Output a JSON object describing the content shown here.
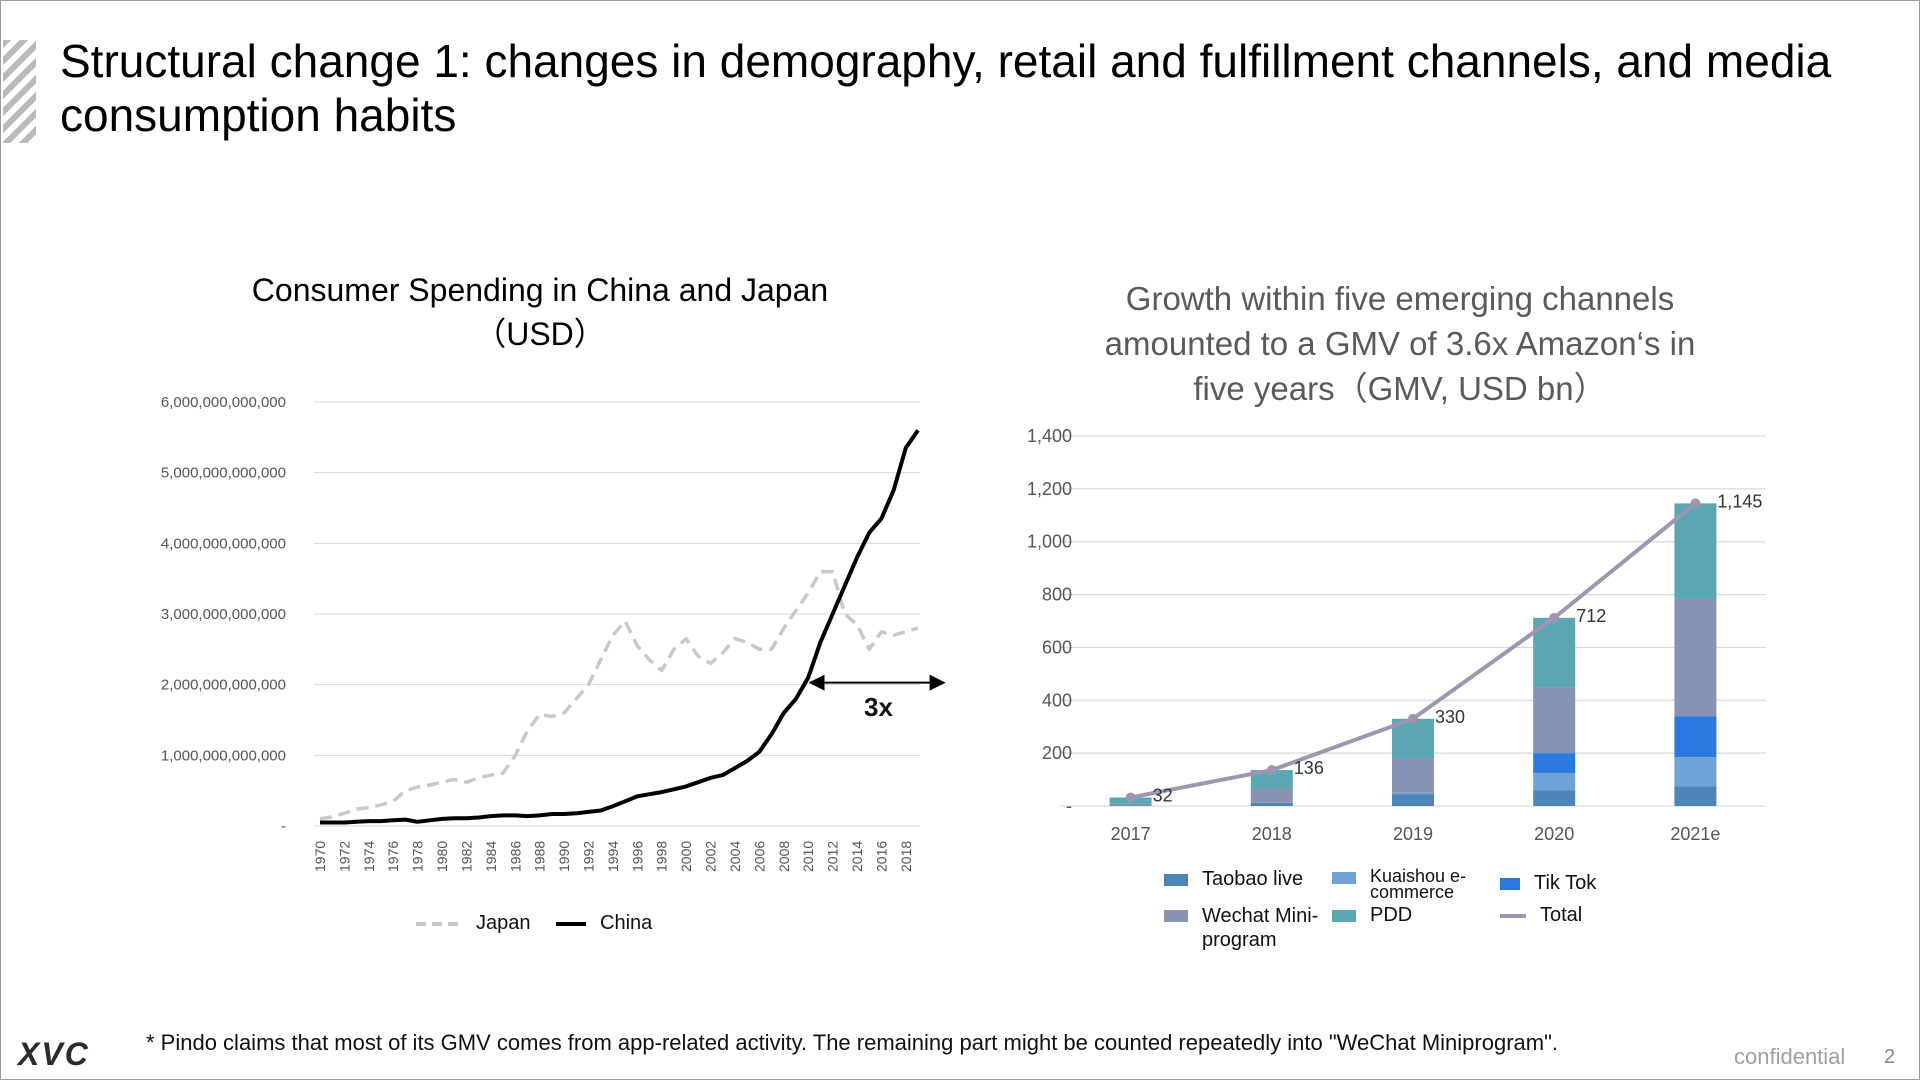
{
  "slide": {
    "title": "Structural change 1: changes in demography, retail and fulfillment channels, and media consumption habits",
    "footnote": "* Pindo claims that most of its GMV comes from app-related activity. The remaining part might be counted repeatedly into \"WeChat Miniprogram\".",
    "logo": "XVC",
    "confidential": "confidential",
    "page_number": "2"
  },
  "chart_data": [
    {
      "type": "line",
      "title": "Consumer Spending in China and Japan",
      "subtitle": "（USD）",
      "xlabel": "",
      "ylabel": "",
      "ylim": [
        0,
        6000000000000
      ],
      "y_ticks": [
        "-",
        "1,000,000,000,000",
        "2,000,000,000,000",
        "3,000,000,000,000",
        "4,000,000,000,000",
        "5,000,000,000,000",
        "6,000,000,000,000"
      ],
      "x": [
        1970,
        1971,
        1972,
        1973,
        1974,
        1975,
        1976,
        1977,
        1978,
        1979,
        1980,
        1981,
        1982,
        1983,
        1984,
        1985,
        1986,
        1987,
        1988,
        1989,
        1990,
        1991,
        1992,
        1993,
        1994,
        1995,
        1996,
        1997,
        1998,
        1999,
        2000,
        2001,
        2002,
        2003,
        2004,
        2005,
        2006,
        2007,
        2008,
        2009,
        2010,
        2011,
        2012,
        2013,
        2014,
        2015,
        2016,
        2017,
        2018,
        2019
      ],
      "x_tick_labels": [
        "1970",
        "1972",
        "1974",
        "1976",
        "1978",
        "1980",
        "1982",
        "1984",
        "1986",
        "1988",
        "1990",
        "1992",
        "1994",
        "1996",
        "1998",
        "2000",
        "2002",
        "2004",
        "2006",
        "2008",
        "2010",
        "2012",
        "2014",
        "2016",
        "2018"
      ],
      "series": [
        {
          "name": "Japan",
          "style": "dashed",
          "color": "#c8c8c8",
          "values": [
            0.1,
            0.13,
            0.18,
            0.24,
            0.26,
            0.3,
            0.35,
            0.5,
            0.55,
            0.58,
            0.62,
            0.66,
            0.62,
            0.68,
            0.72,
            0.75,
            1.0,
            1.35,
            1.58,
            1.55,
            1.6,
            1.8,
            2.0,
            2.35,
            2.7,
            2.9,
            2.55,
            2.35,
            2.2,
            2.5,
            2.65,
            2.4,
            2.3,
            2.45,
            2.65,
            2.6,
            2.5,
            2.5,
            2.8,
            3.05,
            3.3,
            3.6,
            3.6,
            3.0,
            2.85,
            2.5,
            2.75,
            2.7,
            2.75,
            2.8
          ]
        },
        {
          "name": "China",
          "style": "solid",
          "color": "#000000",
          "values": [
            0.05,
            0.05,
            0.05,
            0.06,
            0.07,
            0.07,
            0.08,
            0.09,
            0.06,
            0.08,
            0.1,
            0.11,
            0.11,
            0.12,
            0.14,
            0.15,
            0.15,
            0.14,
            0.15,
            0.17,
            0.17,
            0.18,
            0.2,
            0.22,
            0.28,
            0.35,
            0.42,
            0.45,
            0.48,
            0.52,
            0.56,
            0.62,
            0.68,
            0.72,
            0.82,
            0.92,
            1.05,
            1.3,
            1.6,
            1.8,
            2.1,
            2.6,
            3.0,
            3.4,
            3.8,
            4.15,
            4.35,
            4.75,
            5.35,
            5.6
          ],
          "unit_note": "trillion USD"
        }
      ],
      "legend": [
        "Japan",
        "China"
      ],
      "legend_position": "bottom",
      "annotation": {
        "text": "3x",
        "arrow": "double-headed, from 2010 to 2019 at 2,000,000,000,000"
      },
      "grid": true
    },
    {
      "type": "bar",
      "stacked": true,
      "title": "Growth within five emerging channels amounted to a GMV of 3.6x Amazon‘s in five years（GMV, USD bn）",
      "title_lines": [
        "Growth within five emerging channels",
        "amounted to a GMV of 3.6x Amazon‘s in",
        "five years（GMV, USD bn）"
      ],
      "categories": [
        "2017",
        "2018",
        "2019",
        "2020",
        "2021e"
      ],
      "ylim": [
        0,
        1400
      ],
      "y_ticks": [
        "-",
        "200",
        "400",
        "600",
        "800",
        "1,000",
        "1,200",
        "1,400"
      ],
      "series": [
        {
          "name": "Taobao live",
          "color": "#4f84b8",
          "values": [
            3,
            12,
            45,
            60,
            75
          ]
        },
        {
          "name": "Kuaishou e-commerce",
          "color": "#6fa3d8",
          "values": [
            0,
            0,
            5,
            65,
            110
          ]
        },
        {
          "name": "Tik Tok",
          "color": "#2a7ae0",
          "values": [
            0,
            0,
            0,
            75,
            155
          ]
        },
        {
          "name": "Wechat Mini-program",
          "color": "#8793b3",
          "values": [
            5,
            54,
            130,
            250,
            445
          ]
        },
        {
          "name": "PDD",
          "color": "#5aa7b3",
          "values": [
            24,
            70,
            150,
            262,
            360
          ]
        }
      ],
      "total": {
        "name": "Total",
        "color": "#a095b0",
        "values": [
          32,
          136,
          330,
          712,
          1145
        ],
        "labels": [
          "32",
          "136",
          "330",
          "712",
          "1,145"
        ]
      },
      "legend_position": "bottom",
      "grid": true
    }
  ]
}
